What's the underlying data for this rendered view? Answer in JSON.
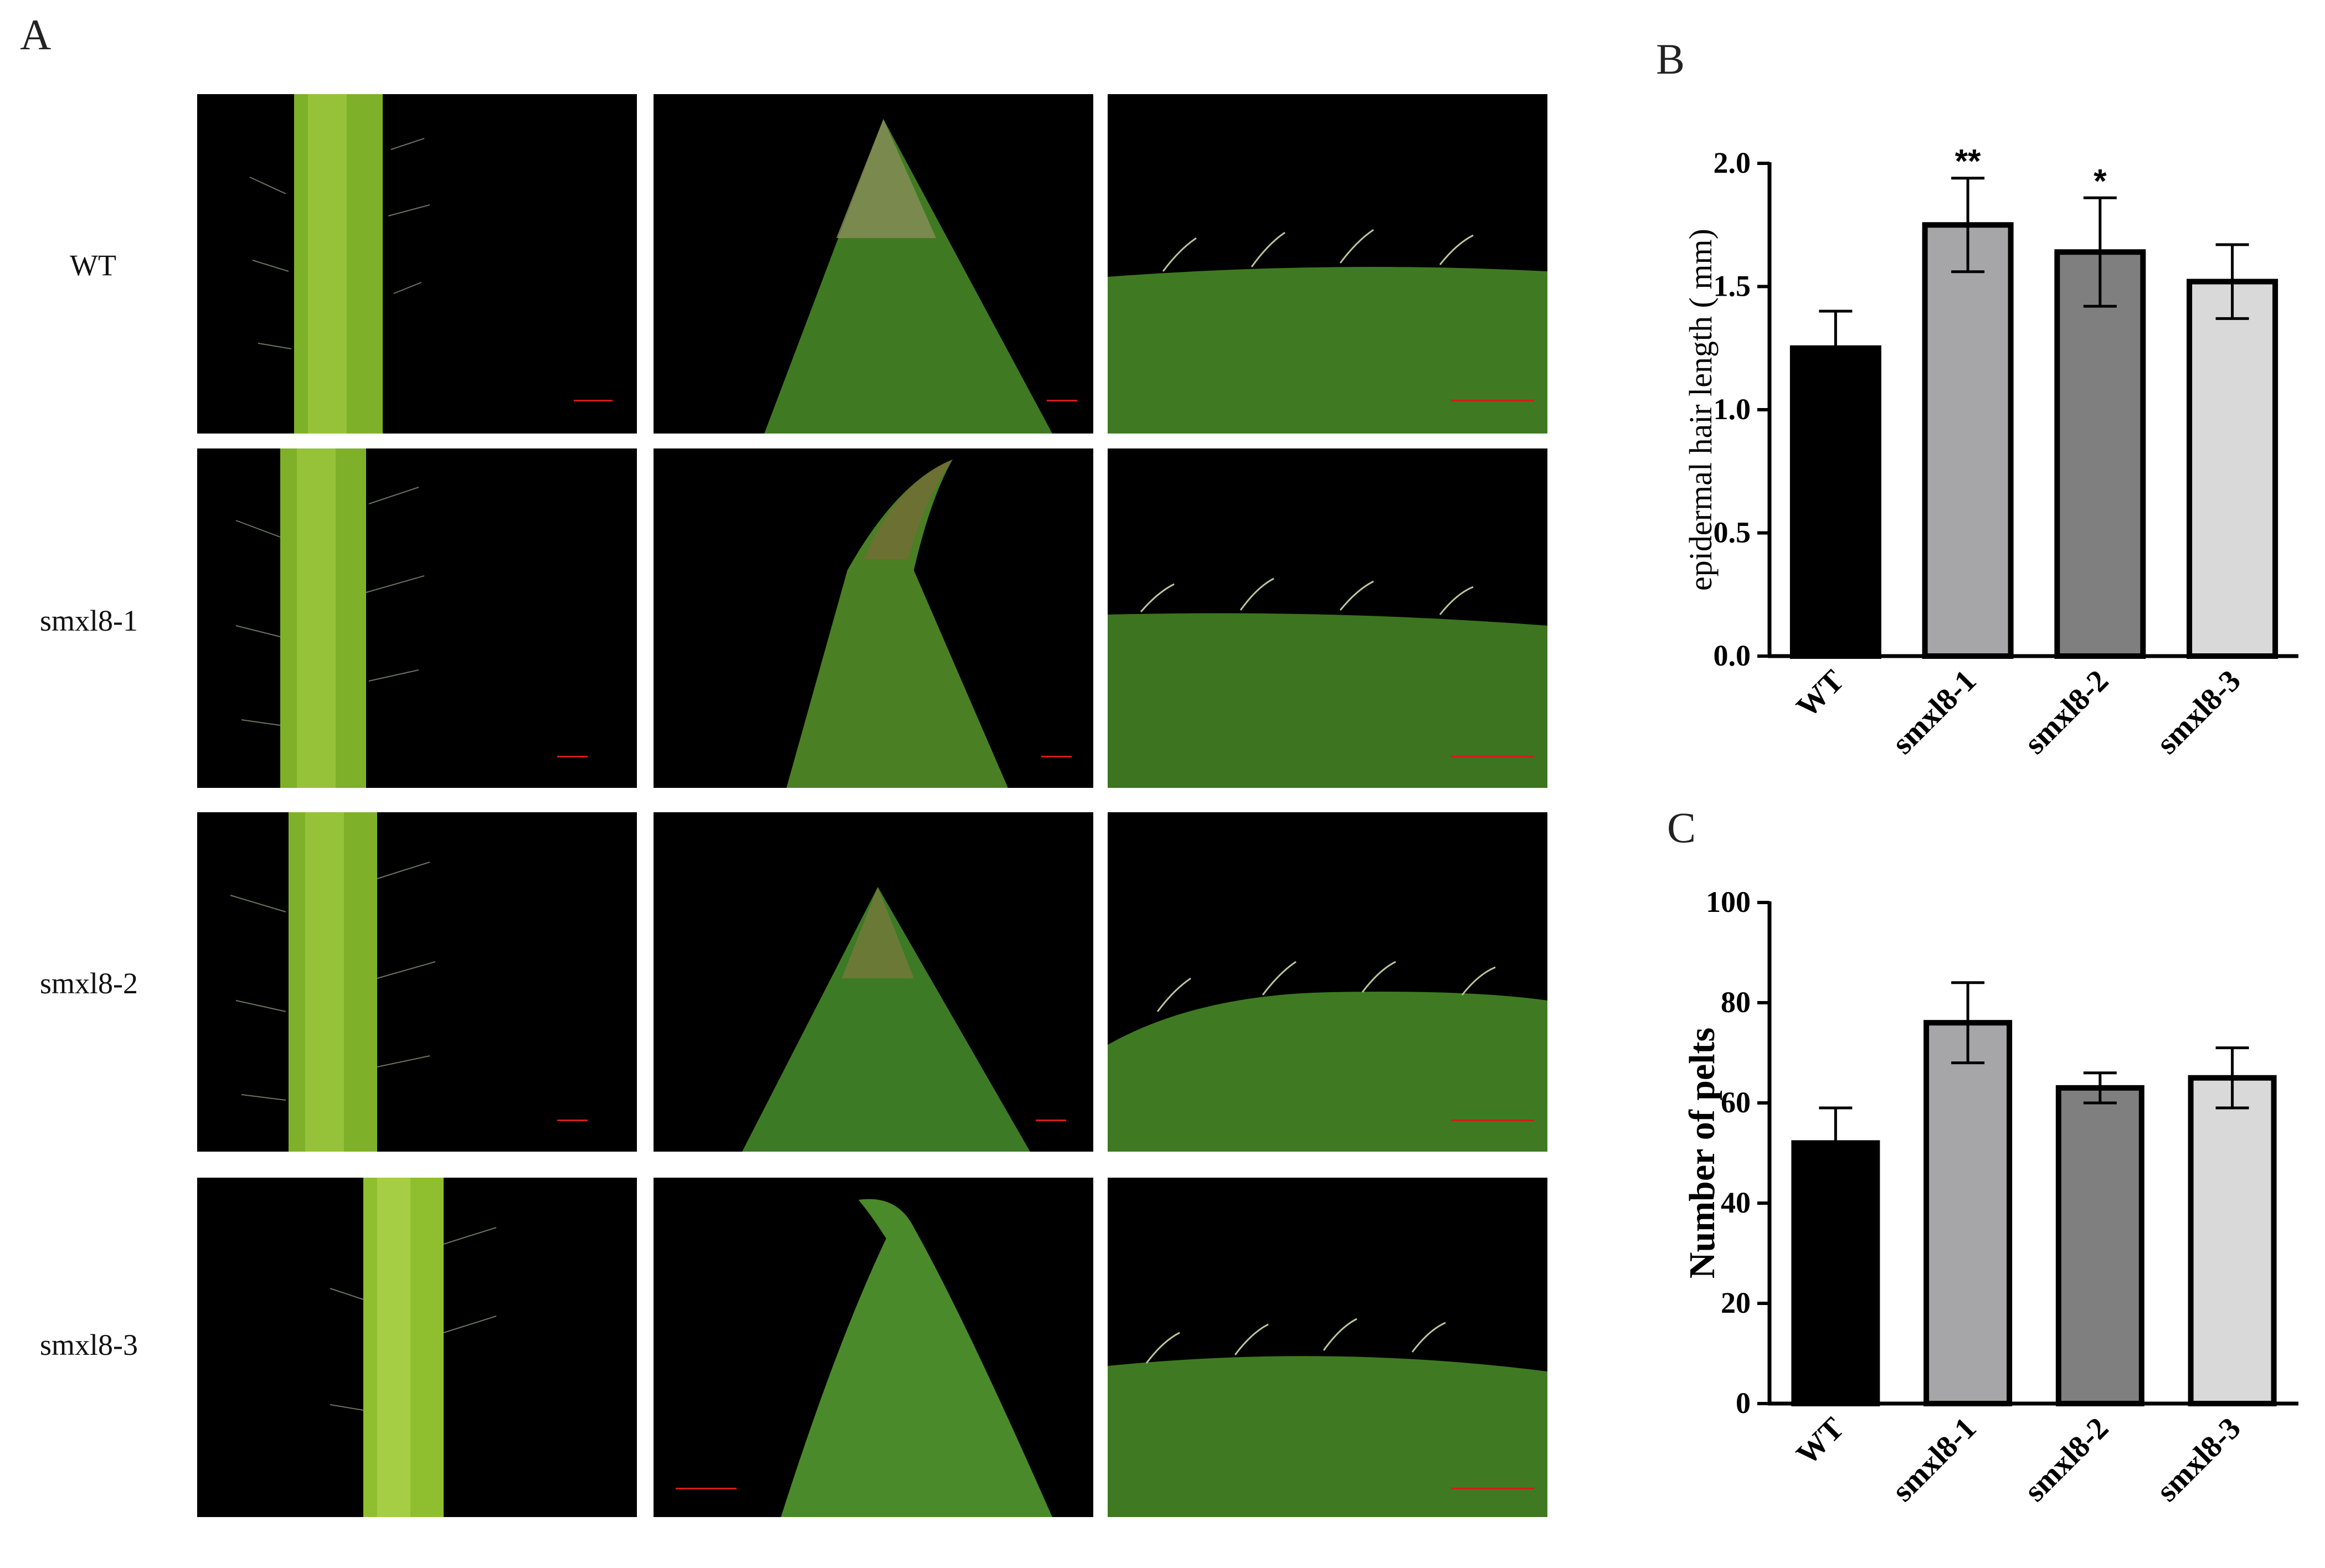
{
  "panels": {
    "a": {
      "letter": "A",
      "rows": [
        {
          "label": "WT"
        },
        {
          "label": "smxl8-1"
        },
        {
          "label": "smxl8-2"
        },
        {
          "label": "smxl8-3"
        }
      ]
    },
    "b": {
      "letter": "B"
    },
    "c": {
      "letter": "C"
    }
  },
  "colors": {
    "WT": "#000000",
    "smxl8-1": "#a6a6a9",
    "smxl8-2": "#7f7f7f",
    "smxl8-3": "#d9d9d9",
    "stem": "#8fbf2e",
    "leaf": "#3f7a22",
    "background": "#000000",
    "scale_bar": "#d61a1a"
  },
  "chart_data": [
    {
      "type": "bar",
      "categories": [
        "WT",
        "smxl8-1",
        "smxl8-2",
        "smxl8-3"
      ],
      "values": [
        1.25,
        1.75,
        1.64,
        1.52
      ],
      "errors": [
        0.15,
        0.19,
        0.22,
        0.15
      ],
      "significance": [
        "",
        "**",
        "*",
        ""
      ],
      "ylabel": "epidermal hair length ( mm)",
      "xlabel": "",
      "ylim": [
        0,
        2.0
      ],
      "yticks": [
        "0.0",
        "0.5",
        "1.0",
        "1.5",
        "2.0"
      ],
      "ytick_values": [
        0,
        0.5,
        1.0,
        1.5,
        2.0
      ],
      "grid": false
    },
    {
      "type": "bar",
      "categories": [
        "WT",
        "smxl8-1",
        "smxl8-2",
        "smxl8-3"
      ],
      "values": [
        52,
        76,
        63,
        65
      ],
      "errors": [
        7,
        8,
        3,
        6
      ],
      "significance": [
        "",
        "",
        "",
        ""
      ],
      "ylabel": "Number of pelts",
      "xlabel": "",
      "ylim": [
        0,
        100
      ],
      "yticks": [
        "0",
        "20",
        "40",
        "60",
        "80",
        "100"
      ],
      "ytick_values": [
        0,
        20,
        40,
        60,
        80,
        100
      ],
      "grid": false
    }
  ]
}
